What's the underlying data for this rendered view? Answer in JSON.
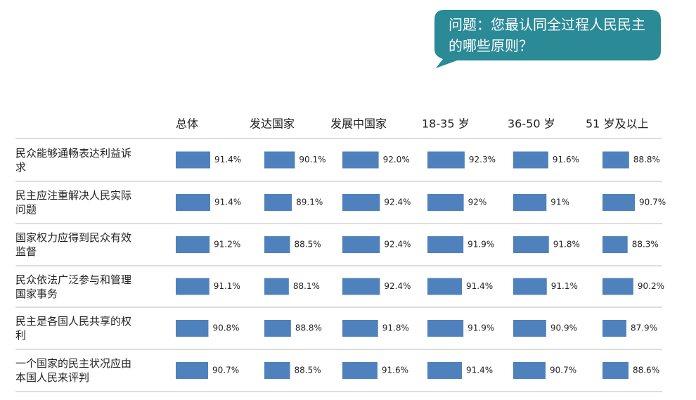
{
  "chart_data": {
    "type": "bar",
    "title": "问题：您最认同全过程人民民主的哪些原则？",
    "categories": [
      "民众能够通畅表达利益诉求",
      "民主应注重解决人民实际问题",
      "国家权力应得到民众有效监督",
      "民众依法广泛参与和管理国家事务",
      "民主是各国人民共享的权利",
      "一个国家的民主状况应由本国人民来评判"
    ],
    "xlim": [
      80,
      92.5
    ],
    "color": "#4f81bd",
    "series": [
      {
        "name": "总体",
        "values": [
          91.4,
          91.4,
          91.2,
          91.1,
          90.8,
          90.7
        ],
        "value_labels": [
          "91.4%",
          "91.4%",
          "91.2%",
          "91.1%",
          "90.8%",
          "90.7%"
        ]
      },
      {
        "name": "发达国家",
        "values": [
          90.1,
          89.1,
          88.5,
          88.1,
          88.8,
          88.5
        ],
        "value_labels": [
          "90.1%",
          "89.1%",
          "88.5%",
          "88.1%",
          "88.8%",
          "88.5%"
        ]
      },
      {
        "name": "发展中国家",
        "values": [
          92.0,
          92.4,
          92.4,
          92.4,
          91.8,
          91.6
        ],
        "value_labels": [
          "92.0%",
          "92.4%",
          "92.4%",
          "92.4%",
          "91.8%",
          "91.6%"
        ]
      },
      {
        "name": "18-35 岁",
        "values": [
          92.3,
          92,
          91.9,
          91.4,
          91.9,
          91.4
        ],
        "value_labels": [
          "92.3%",
          "92%",
          "91.9%",
          "91.4%",
          "91.9%",
          "91.4%"
        ]
      },
      {
        "name": "36-50 岁",
        "values": [
          91.6,
          91,
          91.8,
          91.1,
          90.9,
          90.7
        ],
        "value_labels": [
          "91.6%",
          "91%",
          "91.8%",
          "91.1%",
          "90.9%",
          "90.7%"
        ]
      },
      {
        "name": "51 岁及以上",
        "values": [
          88.8,
          90.7,
          88.3,
          90.2,
          87.9,
          88.6
        ],
        "value_labels": [
          "88.8%",
          "90.7%",
          "88.3%",
          "90.2%",
          "87.9%",
          "88.6%"
        ]
      }
    ]
  }
}
